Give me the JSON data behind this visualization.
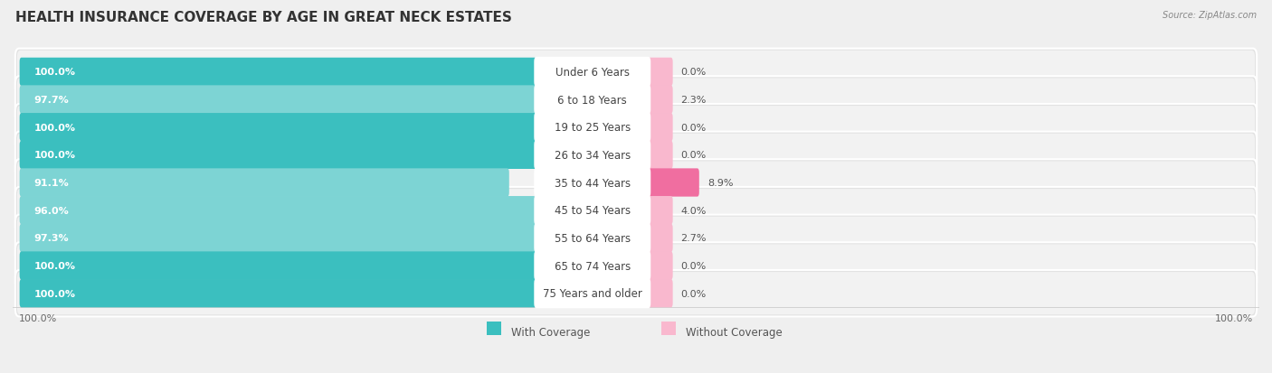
{
  "title": "HEALTH INSURANCE COVERAGE BY AGE IN GREAT NECK ESTATES",
  "source": "Source: ZipAtlas.com",
  "categories": [
    "Under 6 Years",
    "6 to 18 Years",
    "19 to 25 Years",
    "26 to 34 Years",
    "35 to 44 Years",
    "45 to 54 Years",
    "55 to 64 Years",
    "65 to 74 Years",
    "75 Years and older"
  ],
  "with_coverage": [
    100.0,
    97.7,
    100.0,
    100.0,
    91.1,
    96.0,
    97.3,
    100.0,
    100.0
  ],
  "without_coverage": [
    0.0,
    2.3,
    0.0,
    0.0,
    8.9,
    4.0,
    2.7,
    0.0,
    0.0
  ],
  "color_with": "#3BBFBF",
  "color_without_strong": "#F06EA0",
  "color_without_light": "#F9B8CE",
  "color_with_light": "#7DD4D4",
  "bg_color": "#EFEFEF",
  "row_bg": "#E8E8E8",
  "row_inner_bg": "#F5F5F5",
  "label_axis_left": "100.0%",
  "label_axis_right": "100.0%",
  "legend_with": "With Coverage",
  "legend_without": "Without Coverage",
  "title_fontsize": 11,
  "bar_label_fontsize": 8,
  "cat_label_fontsize": 8.5,
  "axis_label_fontsize": 8,
  "legend_fontsize": 8.5
}
